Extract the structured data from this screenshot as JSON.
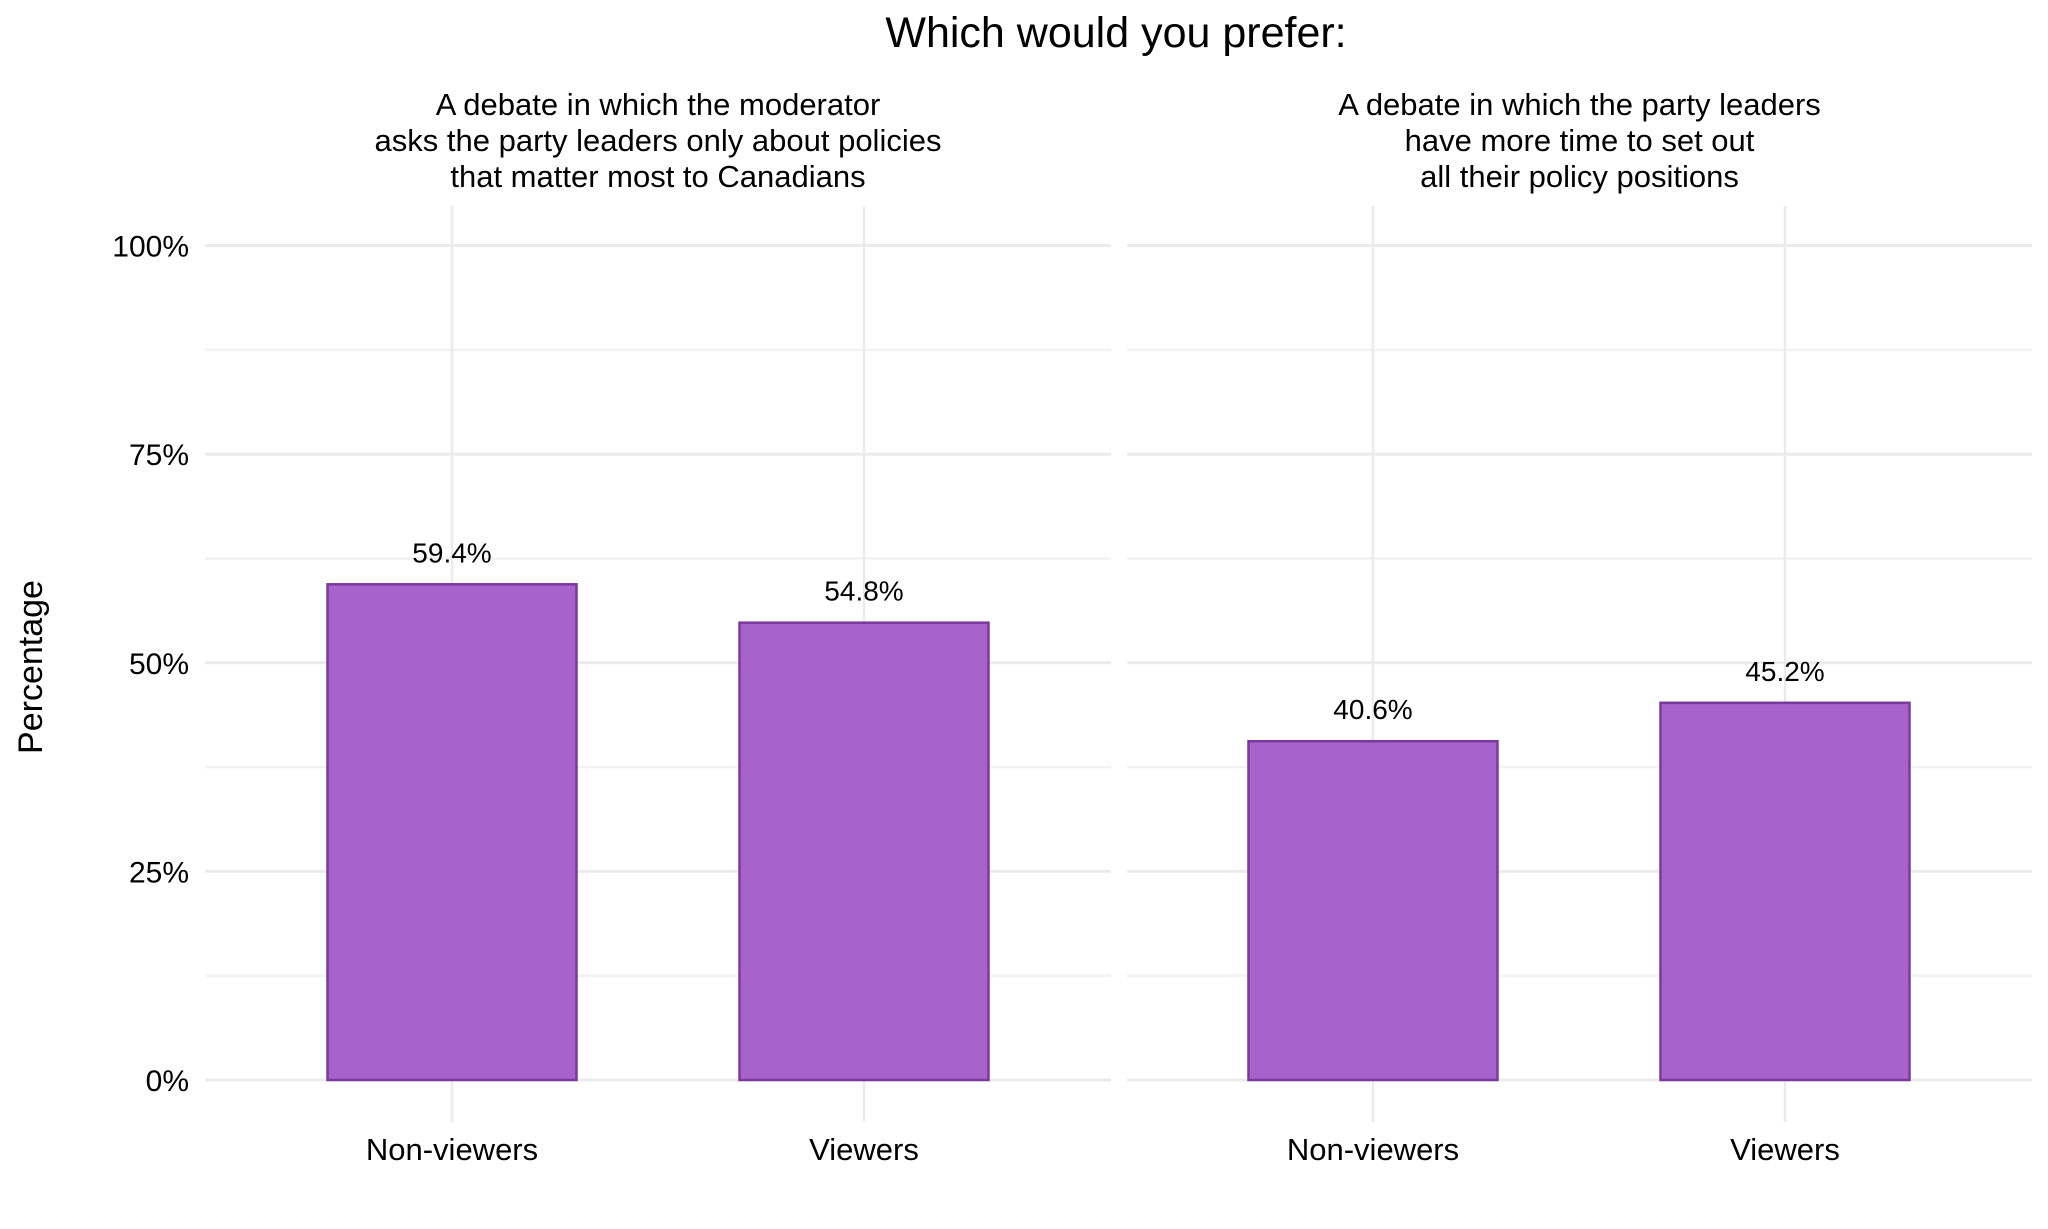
{
  "chart_data": {
    "type": "bar",
    "title": "Which would you prefer:",
    "xlabel": "",
    "ylabel": "Percentage",
    "ylim": [
      0,
      100
    ],
    "yticks": [
      0,
      25,
      50,
      75,
      100
    ],
    "ytick_labels": [
      "0%",
      "25%",
      "50%",
      "75%",
      "100%"
    ],
    "grid": true,
    "legend": null,
    "categories": [
      "Non-viewers",
      "Viewers"
    ],
    "bar_fill": "#a862cb",
    "bar_outline": "#7a3a9c",
    "facets": [
      {
        "strip": [
          "A debate in which the moderator",
          "asks the party leaders only about policies",
          "that matter most to Canadians"
        ],
        "values": [
          59.4,
          54.8
        ],
        "labels": [
          "59.4%",
          "54.8%"
        ]
      },
      {
        "strip": [
          "A debate in which the party leaders",
          "have more time to set out",
          "all their policy positions"
        ],
        "values": [
          40.6,
          45.2
        ],
        "labels": [
          "40.6%",
          "45.2%"
        ]
      }
    ]
  }
}
